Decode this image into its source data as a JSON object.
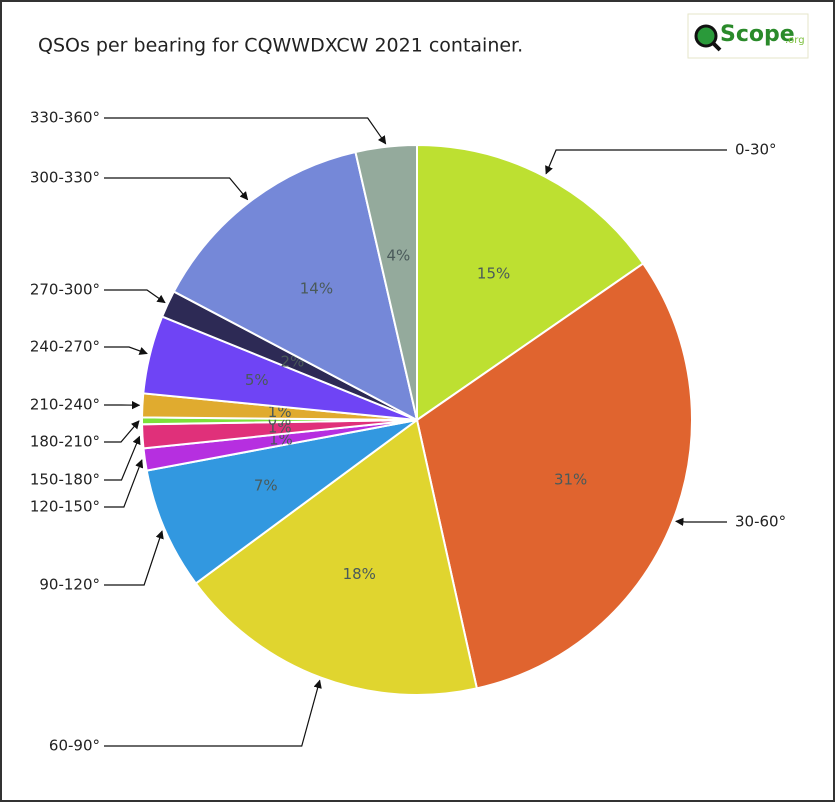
{
  "chart_data": {
    "type": "pie",
    "title": "QSOs per bearing for CQWWDXCW 2021 container.",
    "logo": "Scope",
    "logo_suffix": ".org",
    "categories": [
      "0-30°",
      "30-60°",
      "60-90°",
      "90-120°",
      "120-150°",
      "150-180°",
      "180-210°",
      "210-240°",
      "240-270°",
      "270-300°",
      "300-330°",
      "330-360°"
    ],
    "values": [
      15.4,
      31.2,
      18.4,
      7.2,
      1.3,
      1.4,
      0.4,
      1.4,
      4.6,
      1.6,
      13.7,
      3.6
    ],
    "value_labels": [
      "15%",
      "31%",
      "18%",
      "7%",
      "1%",
      "1%",
      "0%",
      "1%",
      "5%",
      "2%",
      "14%",
      "4%"
    ],
    "colors": [
      "#bde031",
      "#e0642f",
      "#e0d52f",
      "#3298e0",
      "#b62fe0",
      "#e0307a",
      "#7de03a",
      "#e0ab2f",
      "#6f44f5",
      "#2d2a55",
      "#7588d8",
      "#94aa9c"
    ]
  }
}
